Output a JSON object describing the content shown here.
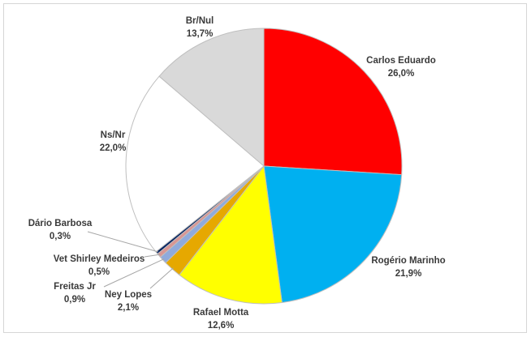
{
  "chart_data": {
    "type": "pie",
    "title": "",
    "slices": [
      {
        "label": "Carlos Eduardo",
        "value": 26.0,
        "display": "26,0%",
        "color": "#ff0000"
      },
      {
        "label": "Rogério Marinho",
        "value": 21.9,
        "display": "21,9%",
        "color": "#00b0f0"
      },
      {
        "label": "Rafael Motta",
        "value": 12.6,
        "display": "12,6%",
        "color": "#ffff00"
      },
      {
        "label": "Ney Lopes",
        "value": 2.1,
        "display": "2,1%",
        "color": "#e6a800"
      },
      {
        "label": "Freitas Jr",
        "value": 0.9,
        "display": "0,9%",
        "color": "#8faadc"
      },
      {
        "label": "Vet Shirley Medeiros",
        "value": 0.5,
        "display": "0,5%",
        "color": "#d99694"
      },
      {
        "label": "Dário Barbosa",
        "value": 0.3,
        "display": "0,3%",
        "color": "#002060"
      },
      {
        "label": "Ns/Nr",
        "value": 22.0,
        "display": "22,0%",
        "color": "#ffffff"
      },
      {
        "label": "Br/Nul",
        "value": 13.7,
        "display": "13,7%",
        "color": "#d9d9d9"
      }
    ],
    "start_angle": "12 o'clock",
    "direction": "clockwise",
    "slice_border_color": "#bfbfbf",
    "leader_line_color": "#a6a6a6"
  }
}
